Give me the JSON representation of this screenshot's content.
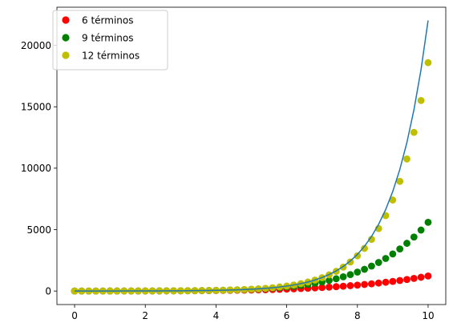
{
  "chart_data": {
    "type": "scatter",
    "title": "",
    "xlabel": "",
    "ylabel": "",
    "xlim": [
      -0.5,
      10.5
    ],
    "ylim": [
      -1101,
      23106
    ],
    "x_ticks": [
      0,
      2,
      4,
      6,
      8,
      10
    ],
    "y_ticks": [
      0,
      5000,
      10000,
      15000,
      20000
    ],
    "x_tick_labels": [
      "0",
      "2",
      "4",
      "6",
      "8",
      "10"
    ],
    "y_tick_labels": [
      "0",
      "5000",
      "10000",
      "15000",
      "20000"
    ],
    "grid": false,
    "legend_position": "top-left",
    "x": [
      0,
      0.2,
      0.4,
      0.6,
      0.8,
      1.0,
      1.2,
      1.4,
      1.6,
      1.8,
      2.0,
      2.2,
      2.4,
      2.6,
      2.8,
      3.0,
      3.2,
      3.4,
      3.6,
      3.8,
      4.0,
      4.2,
      4.4,
      4.6,
      4.8,
      5.0,
      5.2,
      5.4,
      5.6,
      5.8,
      6.0,
      6.2,
      6.4,
      6.6,
      6.8,
      7.0,
      7.2,
      7.4,
      7.6,
      7.8,
      8.0,
      8.2,
      8.4,
      8.6,
      8.8,
      9.0,
      9.2,
      9.4,
      9.6,
      9.8,
      10.0
    ],
    "series": [
      {
        "name": "6 términos",
        "kind": "scatter",
        "color": "#ff0000",
        "values": [
          1.0,
          1.22,
          1.49,
          1.82,
          2.23,
          2.72,
          3.32,
          4.05,
          4.94,
          6.0,
          7.27,
          8.77,
          10.55,
          12.66,
          15.12,
          18.0,
          21.34,
          25.21,
          29.65,
          34.74,
          40.56,
          47.18,
          54.67,
          63.14,
          72.69,
          83.42,
          95.44,
          108.88,
          123.86,
          140.51,
          159.0,
          179.46,
          202.06,
          226.96,
          254.35,
          284.43,
          317.4,
          353.48,
          392.89,
          435.86,
          482.65,
          533.52,
          588.72,
          648.54,
          713.27,
          783.22,
          858.7,
          940.04,
          1027.59,
          1121.69,
          1222.67
        ]
      },
      {
        "name": "9 términos",
        "kind": "scatter",
        "color": "#008000",
        "values": [
          1.0,
          1.22,
          1.49,
          1.82,
          2.23,
          2.72,
          3.32,
          4.06,
          4.95,
          6.05,
          7.39,
          9.02,
          11.01,
          13.45,
          16.42,
          20.05,
          24.45,
          29.79,
          36.26,
          44.08,
          53.52,
          64.88,
          78.5,
          94.79,
          114.18,
          137.2,
          164.45,
          196.57,
          234.3,
          278.46,
          329.99,
          389.9,
          459.34,
          539.61,
          632.07,
          738.27,
          859.9,
          998.8,
          1157.0,
          1336.7,
          1540.3,
          1770.4,
          2029.9,
          2321.9,
          2649.8,
          3017.1,
          3427.8,
          3886.1,
          4396.5,
          4963.8,
          5593.0
        ]
      },
      {
        "name": "12 términos",
        "kind": "scatter",
        "color": "#bfbf00",
        "values": [
          1.0,
          1.22,
          1.49,
          1.82,
          2.23,
          2.72,
          3.32,
          4.06,
          4.95,
          6.05,
          7.39,
          9.03,
          11.02,
          13.46,
          16.44,
          20.09,
          24.53,
          29.96,
          36.6,
          44.7,
          54.59,
          66.68,
          81.43,
          99.45,
          121.46,
          148.34,
          181.14,
          221.17,
          270.02,
          329.6,
          402.26,
          490.8,
          598.6,
          729.8,
          889.3,
          1082.9,
          1317.8,
          1602.5,
          1947.1,
          2363.8,
          2867.1,
          3474.2,
          4205.5,
          5085.3,
          6142.5,
          7410.9,
          8930.6,
          10748.4,
          12919.7,
          15509.0,
          18591.0
        ]
      },
      {
        "name": "",
        "kind": "line",
        "color": "#1f77b4",
        "values": [
          1.0,
          1.22,
          1.49,
          1.82,
          2.23,
          2.72,
          3.32,
          4.06,
          4.95,
          6.05,
          7.39,
          9.03,
          11.02,
          13.46,
          16.44,
          20.09,
          24.53,
          29.96,
          36.6,
          44.7,
          54.6,
          66.69,
          81.45,
          99.48,
          121.51,
          148.41,
          181.27,
          221.41,
          270.43,
          330.3,
          403.43,
          492.75,
          601.85,
          735.1,
          897.85,
          1096.63,
          1339.43,
          1635.98,
          1998.2,
          2440.6,
          2980.96,
          3640.95,
          4447.07,
          5431.66,
          6634.24,
          8103.08,
          9897.13,
          12088.38,
          14764.78,
          18033.74,
          22026.47
        ]
      }
    ]
  }
}
